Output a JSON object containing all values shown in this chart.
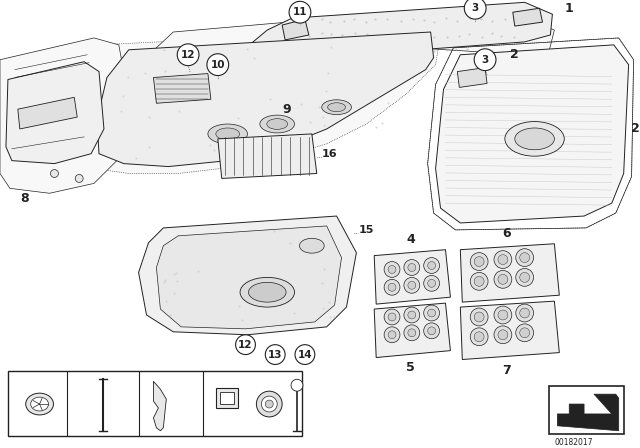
{
  "bg_color": "#ffffff",
  "line_color": "#222222",
  "image_number": "00182017",
  "fig_width": 6.4,
  "fig_height": 4.48,
  "dpi": 100
}
